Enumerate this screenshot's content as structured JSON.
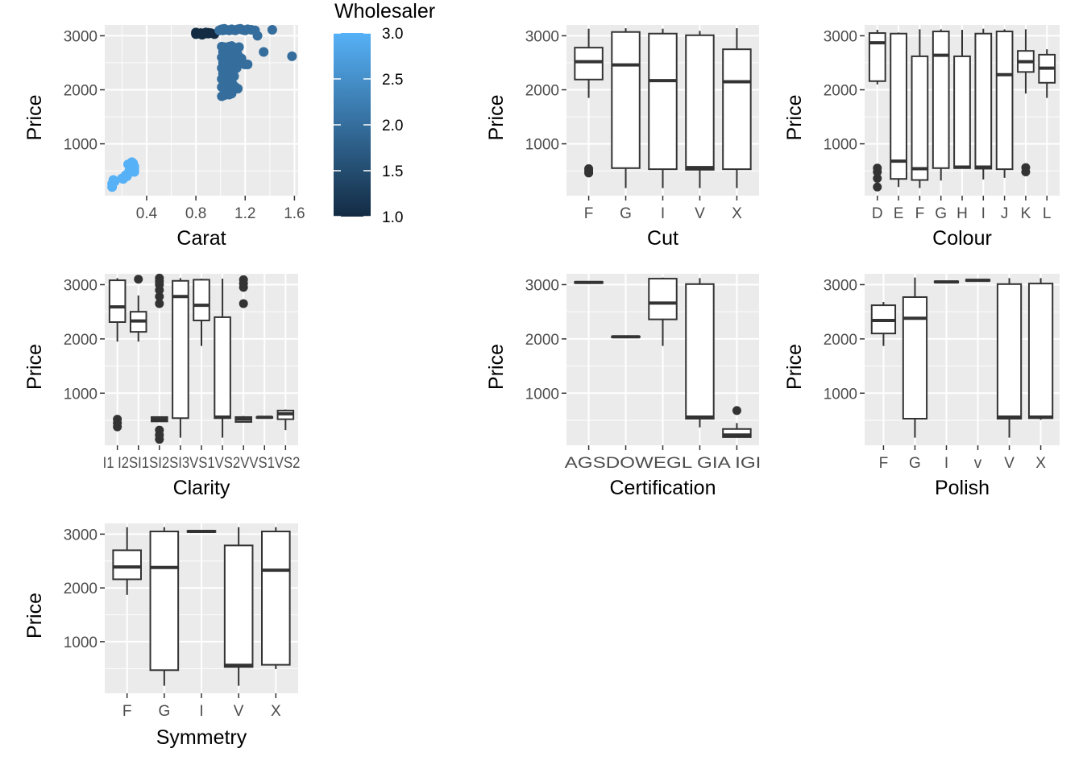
{
  "figure": {
    "background": "#ffffff",
    "panel_bg": "#ebebeb",
    "grid_color": "#ffffff"
  },
  "chart_data": [
    {
      "id": "carat",
      "type": "scatter",
      "xlabel": "Carat",
      "ylabel": "Price",
      "xlim": [
        0.06,
        1.63
      ],
      "ylim": [
        40,
        3200
      ],
      "xticks": [
        0.4,
        0.8,
        1.2,
        1.6
      ],
      "xtick_labels": [
        "0.4",
        "0.8",
        "1.2",
        "1.6"
      ],
      "yticks": [
        1000,
        2000,
        3000
      ],
      "ytick_labels": [
        "1000",
        "2000",
        "3000"
      ],
      "grid": true,
      "color_scale": {
        "low": "#132b43",
        "high": "#56b1f7",
        "range": [
          1.0,
          3.0
        ]
      },
      "legend": {
        "title": "Wholesaler",
        "position": "right",
        "ticks": [
          1.0,
          1.5,
          2.0,
          2.5,
          3.0
        ],
        "tick_labels": [
          "1.0",
          "1.5",
          "2.0",
          "2.5",
          "3.0"
        ]
      },
      "series": [
        {
          "wholesaler": 3,
          "x": [
            0.12,
            0.12,
            0.13,
            0.14,
            0.2,
            0.22,
            0.24,
            0.25,
            0.26,
            0.27,
            0.28,
            0.29,
            0.3,
            0.23,
            0.25,
            0.28,
            0.3,
            0.27,
            0.3,
            0.21,
            0.26
          ],
          "y": [
            200,
            260,
            330,
            300,
            360,
            380,
            400,
            450,
            500,
            560,
            600,
            640,
            580,
            420,
            620,
            660,
            480,
            540,
            520,
            350,
            470
          ]
        },
        {
          "wholesaler": 1,
          "x": [
            0.8,
            0.82,
            0.84,
            0.86,
            0.88,
            0.9,
            0.92,
            0.95,
            0.8,
            0.85,
            0.9
          ],
          "y": [
            3030,
            3040,
            3050,
            3030,
            3060,
            3040,
            3050,
            3030,
            3060,
            3020,
            3055
          ]
        },
        {
          "wholesaler": 2,
          "x": [
            0.99,
            1.0,
            1.01,
            1.02,
            1.03,
            1.05,
            1.07,
            1.09,
            1.1,
            1.12,
            1.14,
            1.16,
            1.18,
            1.2,
            1.22,
            1.25,
            1.28,
            1.3,
            1.35,
            1.42,
            1.58,
            1.01,
            1.03,
            1.05,
            1.07,
            1.09,
            1.11,
            1.13,
            1.15,
            1.01,
            1.03,
            1.05,
            1.07,
            1.09,
            1.11,
            1.13,
            1.01,
            1.03,
            1.05,
            1.07,
            1.09,
            1.11,
            1.01,
            1.03,
            1.05,
            1.07,
            1.09,
            1.11,
            1.13,
            1.15,
            1.17,
            1.01,
            1.03,
            1.05,
            1.07,
            1.09,
            1.01,
            1.03,
            1.05,
            1.07,
            1.09,
            1.02,
            1.04,
            1.06,
            1.08,
            1.1,
            1.12,
            1.14,
            1.16,
            1.18,
            1.2,
            1.22,
            1.02,
            1.04,
            1.06,
            1.08,
            1.1,
            1.12,
            1.02,
            1.04,
            1.06,
            1.08,
            1.1,
            1.04,
            1.06,
            1.08,
            1.1,
            1.12,
            1.14
          ],
          "y": [
            3100,
            3110,
            3120,
            3100,
            3130,
            3110,
            3100,
            3120,
            3110,
            3100,
            3120,
            3130,
            3110,
            3100,
            3120,
            3110,
            3100,
            3000,
            2700,
            3110,
            2620,
            2800,
            2790,
            2760,
            2800,
            2810,
            2780,
            2770,
            2790,
            2600,
            2620,
            2640,
            2610,
            2590,
            2630,
            2650,
            2400,
            2420,
            2440,
            2410,
            2430,
            2450,
            2200,
            2220,
            2240,
            2210,
            2230,
            2250,
            2400,
            2520,
            2580,
            2050,
            2060,
            2070,
            2040,
            2080,
            1880,
            1900,
            1920,
            1910,
            1930,
            2700,
            2710,
            2690,
            2720,
            2680,
            2700,
            2650,
            2560,
            2480,
            2470,
            2470,
            2500,
            2510,
            2520,
            2490,
            2530,
            2500,
            2300,
            2320,
            2340,
            2310,
            2330,
            2150,
            2170,
            2160,
            2100,
            2050,
            2020
          ]
        }
      ]
    },
    {
      "id": "cut",
      "type": "box",
      "xlabel": "Cut",
      "ylabel": "Price",
      "ylim": [
        40,
        3200
      ],
      "yticks": [
        1000,
        2000,
        3000
      ],
      "ytick_labels": [
        "1000",
        "2000",
        "3000"
      ],
      "categories": [
        "F",
        "G",
        "I",
        "V",
        "X"
      ],
      "boxes": [
        {
          "lo": 1850,
          "q1": 2190,
          "med": 2520,
          "q3": 2780,
          "hi": 3130,
          "outliers": [
            460,
            500,
            540
          ]
        },
        {
          "lo": 180,
          "q1": 550,
          "med": 2460,
          "q3": 3070,
          "hi": 3140,
          "outliers": []
        },
        {
          "lo": 180,
          "q1": 530,
          "med": 2170,
          "q3": 3040,
          "hi": 3130,
          "outliers": []
        },
        {
          "lo": 180,
          "q1": 520,
          "med": 560,
          "q3": 3010,
          "hi": 3090,
          "outliers": []
        },
        {
          "lo": 180,
          "q1": 530,
          "med": 2150,
          "q3": 2750,
          "hi": 3140,
          "outliers": []
        }
      ]
    },
    {
      "id": "colour",
      "type": "box",
      "xlabel": "Colour",
      "ylabel": "Price",
      "ylim": [
        40,
        3200
      ],
      "yticks": [
        1000,
        2000,
        3000
      ],
      "ytick_labels": [
        "1000",
        "2000",
        "3000"
      ],
      "categories": [
        "D",
        "E",
        "F",
        "G",
        "H",
        "I",
        "J",
        "K",
        "L"
      ],
      "boxes": [
        {
          "lo": 2100,
          "q1": 2160,
          "med": 2870,
          "q3": 3050,
          "hi": 3110,
          "outliers": [
            200,
            360,
            480,
            550
          ]
        },
        {
          "lo": 200,
          "q1": 350,
          "med": 680,
          "q3": 3040,
          "hi": 3060,
          "outliers": []
        },
        {
          "lo": 180,
          "q1": 330,
          "med": 540,
          "q3": 2620,
          "hi": 3120,
          "outliers": []
        },
        {
          "lo": 320,
          "q1": 550,
          "med": 2640,
          "q3": 3080,
          "hi": 3120,
          "outliers": []
        },
        {
          "lo": 540,
          "q1": 550,
          "med": 570,
          "q3": 2620,
          "hi": 3110,
          "outliers": []
        },
        {
          "lo": 340,
          "q1": 540,
          "med": 570,
          "q3": 3040,
          "hi": 3130,
          "outliers": []
        },
        {
          "lo": 370,
          "q1": 530,
          "med": 2280,
          "q3": 3080,
          "hi": 3120,
          "outliers": []
        },
        {
          "lo": 1930,
          "q1": 2330,
          "med": 2520,
          "q3": 2720,
          "hi": 3120,
          "outliers": [
            480,
            560
          ]
        },
        {
          "lo": 1850,
          "q1": 2130,
          "med": 2400,
          "q3": 2650,
          "hi": 2750,
          "outliers": []
        }
      ]
    },
    {
      "id": "clarity",
      "type": "box",
      "xlabel": "Clarity",
      "ylabel": "Price",
      "ylim": [
        40,
        3200
      ],
      "yticks": [
        1000,
        2000,
        3000
      ],
      "ytick_labels": [
        "1000",
        "2000",
        "3000"
      ],
      "categories": [
        "I1",
        "I2",
        "SI1",
        "SI2",
        "SI3",
        "VS1",
        "VS2",
        "VVS1",
        "VVS2"
      ],
      "tick_text": "I1 I2SI1SI2SI3VS1VS2VVS1VS2",
      "boxes": [
        {
          "lo": 1950,
          "q1": 2310,
          "med": 2590,
          "q3": 3080,
          "hi": 3120,
          "outliers": [
            380,
            450,
            520
          ]
        },
        {
          "lo": 1950,
          "q1": 2130,
          "med": 2330,
          "q3": 2500,
          "hi": 2800,
          "outliers": [
            3100
          ]
        },
        {
          "lo": 470,
          "q1": 480,
          "med": 520,
          "q3": 560,
          "hi": 570,
          "outliers": [
            150,
            230,
            320,
            2650,
            2780,
            2900,
            3000,
            3060,
            3120
          ]
        },
        {
          "lo": 180,
          "q1": 540,
          "med": 2780,
          "q3": 3070,
          "hi": 3120,
          "outliers": []
        },
        {
          "lo": 1870,
          "q1": 2340,
          "med": 2620,
          "q3": 3090,
          "hi": 3110,
          "outliers": []
        },
        {
          "lo": 180,
          "q1": 540,
          "med": 560,
          "q3": 2400,
          "hi": 3110,
          "outliers": []
        },
        {
          "lo": 470,
          "q1": 470,
          "med": 520,
          "q3": 560,
          "hi": 580,
          "outliers": [
            2650,
            2950,
            3020,
            3090
          ]
        },
        {
          "lo": 540,
          "q1": 545,
          "med": 555,
          "q3": 560,
          "hi": 565,
          "outliers": []
        },
        {
          "lo": 320,
          "q1": 520,
          "med": 620,
          "q3": 680,
          "hi": 700,
          "outliers": []
        }
      ]
    },
    {
      "id": "certification",
      "type": "box",
      "xlabel": "Certification",
      "ylabel": "Price",
      "ylim": [
        40,
        3200
      ],
      "yticks": [
        1000,
        2000,
        3000
      ],
      "ytick_labels": [
        "1000",
        "2000",
        "3000"
      ],
      "categories": [
        "AGS",
        "DOW",
        "EGL",
        "GIA",
        "IGI"
      ],
      "tick_text": "AGSDOWEGL GIA IGI",
      "boxes": [
        {
          "lo": 3020,
          "q1": 3030,
          "med": 3040,
          "q3": 3050,
          "hi": 3060,
          "outliers": []
        },
        {
          "lo": 2020,
          "q1": 2030,
          "med": 2040,
          "q3": 2045,
          "hi": 2050,
          "outliers": []
        },
        {
          "lo": 1870,
          "q1": 2360,
          "med": 2660,
          "q3": 3110,
          "hi": 3130,
          "outliers": []
        },
        {
          "lo": 370,
          "q1": 530,
          "med": 560,
          "q3": 3010,
          "hi": 3120,
          "outliers": []
        },
        {
          "lo": 180,
          "q1": 190,
          "med": 230,
          "q3": 340,
          "hi": 450,
          "outliers": [
            680
          ]
        }
      ]
    },
    {
      "id": "polish",
      "type": "box",
      "xlabel": "Polish",
      "ylabel": "Price",
      "ylim": [
        40,
        3200
      ],
      "yticks": [
        1000,
        2000,
        3000
      ],
      "ytick_labels": [
        "1000",
        "2000",
        "3000"
      ],
      "categories": [
        "F",
        "G",
        "I",
        "v",
        "V",
        "X"
      ],
      "boxes": [
        {
          "lo": 1870,
          "q1": 2100,
          "med": 2340,
          "q3": 2620,
          "hi": 2680,
          "outliers": []
        },
        {
          "lo": 180,
          "q1": 530,
          "med": 2380,
          "q3": 2770,
          "hi": 3130,
          "outliers": []
        },
        {
          "lo": 3030,
          "q1": 3040,
          "med": 3050,
          "q3": 3060,
          "hi": 3070,
          "outliers": []
        },
        {
          "lo": 3060,
          "q1": 3070,
          "med": 3080,
          "q3": 3090,
          "hi": 3100,
          "outliers": []
        },
        {
          "lo": 180,
          "q1": 530,
          "med": 560,
          "q3": 3010,
          "hi": 3120,
          "outliers": []
        },
        {
          "lo": 510,
          "q1": 540,
          "med": 560,
          "q3": 3020,
          "hi": 3120,
          "outliers": []
        }
      ]
    },
    {
      "id": "symmetry",
      "type": "box",
      "xlabel": "Symmetry",
      "ylabel": "Price",
      "ylim": [
        40,
        3200
      ],
      "yticks": [
        1000,
        2000,
        3000
      ],
      "ytick_labels": [
        "1000",
        "2000",
        "3000"
      ],
      "categories": [
        "F",
        "G",
        "I",
        "V",
        "X"
      ],
      "boxes": [
        {
          "lo": 1870,
          "q1": 2160,
          "med": 2390,
          "q3": 2700,
          "hi": 3130,
          "outliers": []
        },
        {
          "lo": 180,
          "q1": 470,
          "med": 2380,
          "q3": 3050,
          "hi": 3130,
          "outliers": []
        },
        {
          "lo": 3030,
          "q1": 3040,
          "med": 3050,
          "q3": 3060,
          "hi": 3070,
          "outliers": []
        },
        {
          "lo": 180,
          "q1": 530,
          "med": 560,
          "q3": 2790,
          "hi": 3130,
          "outliers": []
        },
        {
          "lo": 490,
          "q1": 570,
          "med": 2330,
          "q3": 3050,
          "hi": 3130,
          "outliers": []
        }
      ]
    }
  ]
}
